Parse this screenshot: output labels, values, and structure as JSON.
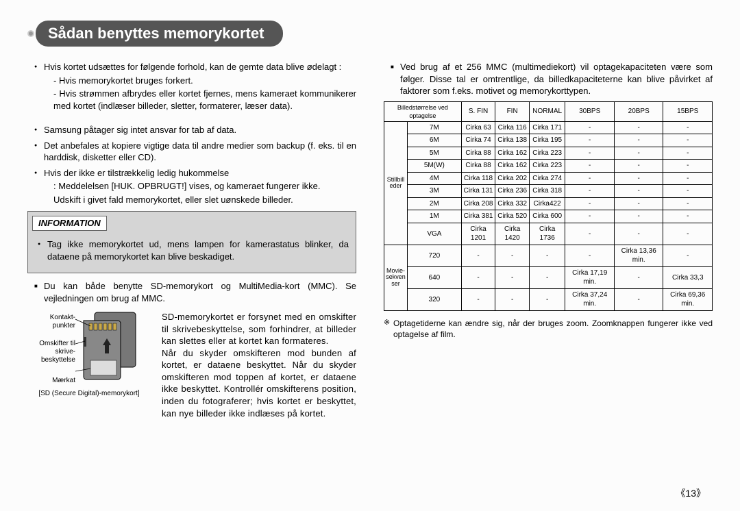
{
  "page": {
    "title": "Sådan benyttes memorykortet",
    "page_number": "《13》"
  },
  "left": {
    "b1": "Hvis kortet udsættes for følgende forhold, kan de gemte data blive ødelagt :",
    "b1a": "- Hvis memorykortet bruges forkert.",
    "b1b": "- Hvis strømmen afbrydes eller kortet fjernes, mens kameraet kommunikerer med kortet (indlæser billeder, sletter, formaterer, læser data).",
    "b2": "Samsung påtager sig intet ansvar for tab af data.",
    "b3": "Det anbefales at kopiere vigtige data til andre medier som backup (f. eks. til en harddisk, disketter eller CD).",
    "b4": "Hvis der ikke er tilstrækkelig ledig hukommelse",
    "b4a": ": Meddelelsen [HUK. OPBRUGT!] vises, og kameraet fungerer ikke.",
    "b4b": "Udskift i givet fald memorykortet, eller slet uønskede billeder.",
    "info_label": "INFORMATION",
    "info_text": "Tag ikke memorykortet ud, mens lampen for kamerastatus blinker, da dataene på memorykortet kan blive beskadiget.",
    "sq1": "Du kan både benytte SD-memorykort og MultiMedia-kort (MMC). Se vejledningen om brug af MMC.",
    "sd_labels": {
      "contacts": "Kontakt-\npunkter",
      "switch": "Omskifter til\nskrive-\nbeskyttelse",
      "label": "Mærkat"
    },
    "sd_caption": "[SD (Secure Digital)-memorykort]",
    "sd_para": "SD-memorykortet er forsynet med en omskifter til skrivebeskyttelse, som forhindrer, at billeder kan slettes eller at kortet kan formateres.\nNår du skyder omskifteren mod bunden af kortet, er dataene beskyttet. Når du skyder omskifteren mod toppen af kortet, er dataene ikke beskyttet. Kontrollér omskifterens position, inden du fotograferer; hvis kortet er beskyttet, kan nye billeder ikke indlæses på kortet."
  },
  "right": {
    "sq_intro": "Ved brug af et 256 MMC (multimediekort) vil optagekapaciteten være som følger.  Disse tal er omtrentlige, da billedkapaciteterne kan blive påvirket af faktorer som f.eks. motivet og memorykorttypen.",
    "headers": {
      "c0": "Billedstørrelse ved optagelse",
      "c1": "S. FIN",
      "c2": "FIN",
      "c3": "NORMAL",
      "c4": "30BPS",
      "c5": "20BPS",
      "c6": "15BPS"
    },
    "rowcat_still": "Stillbill\neder",
    "rowcat_movie": "Movie-\nsekven\nser",
    "rows_still": [
      [
        "7M",
        "Cirka 63",
        "Cirka 116",
        "Cirka 171",
        "-",
        "-",
        "-"
      ],
      [
        "6M",
        "Cirka 74",
        "Cirka 138",
        "Cirka 195",
        "-",
        "-",
        "-"
      ],
      [
        "5M",
        "Cirka 88",
        "Cirka 162",
        "Cirka 223",
        "-",
        "-",
        "-"
      ],
      [
        "5M(W)",
        "Cirka 88",
        "Cirka 162",
        "Cirka 223",
        "-",
        "-",
        "-"
      ],
      [
        "4M",
        "Cirka 118",
        "Cirka 202",
        "Cirka 274",
        "-",
        "-",
        "-"
      ],
      [
        "3M",
        "Cirka 131",
        "Cirka 236",
        "Cirka 318",
        "-",
        "-",
        "-"
      ],
      [
        "2M",
        "Cirka 208",
        "Cirka 332",
        "Cirka422",
        "-",
        "-",
        "-"
      ],
      [
        "1M",
        "Cirka 381",
        "Cirka 520",
        "Cirka 600",
        "-",
        "-",
        "-"
      ],
      [
        "VGA",
        "Cirka 1201",
        "Cirka 1420",
        "Cirka 1736",
        "-",
        "-",
        "-"
      ]
    ],
    "rows_movie": [
      [
        "720",
        "-",
        "-",
        "-",
        "-",
        "Cirka 13,36 min.",
        "-"
      ],
      [
        "640",
        "-",
        "-",
        "-",
        "Cirka 17,19 min.",
        "-",
        "Cirka 33,3"
      ],
      [
        "320",
        "-",
        "-",
        "-",
        "Cirka 37,24 min.",
        "-",
        "Cirka 69,36 min."
      ]
    ],
    "footnote": "Optagetiderne kan ændre sig, når der bruges zoom. Zoomknappen fungerer ikke ved optagelse af film."
  },
  "colors": {
    "title_bg": "#555555",
    "title_fg": "#ffffff",
    "info_bg": "#d5d5d5",
    "border": "#000000",
    "page_bg": "#fcfcfc"
  }
}
